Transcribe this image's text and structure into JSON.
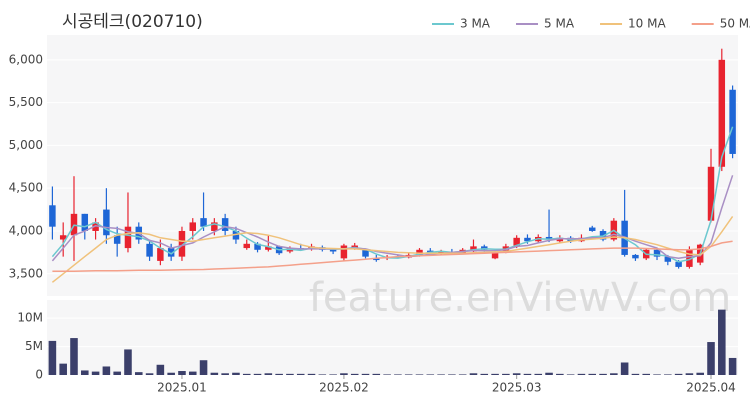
{
  "chart_data": [
    {
      "type": "candlestick",
      "title": "시공테크(020710)",
      "watermark": "feature.enViewV.com",
      "up_color": "#e8232f",
      "down_color": "#1e66d6",
      "open": [
        4300,
        3900,
        3950,
        4200,
        4000,
        4250,
        3950,
        3800,
        4050,
        3850,
        3650,
        3800,
        3700,
        4000,
        4150,
        4000,
        4150,
        4000,
        3800,
        3850,
        3780,
        3820,
        3760,
        3800,
        3790,
        3810,
        3780,
        3680,
        3800,
        3780,
        3680,
        3680,
        3700,
        3690,
        3720,
        3770,
        3740,
        3760,
        3740,
        3760,
        3820,
        3680,
        3760,
        3830,
        3920,
        3880,
        3930,
        3880,
        3920,
        3880,
        4040,
        4000,
        3900,
        4120,
        3720,
        3680,
        3780,
        3700,
        3640,
        3580,
        3630,
        4120,
        4750,
        5650
      ],
      "high": [
        4520,
        4100,
        4640,
        4200,
        4150,
        4500,
        4050,
        4450,
        4100,
        3900,
        3900,
        3850,
        4050,
        4150,
        4450,
        4150,
        4200,
        4050,
        3900,
        3870,
        3950,
        3830,
        3820,
        3850,
        3850,
        3830,
        3800,
        3850,
        3860,
        3790,
        3720,
        3720,
        3720,
        3750,
        3800,
        3800,
        3780,
        3790,
        3800,
        3900,
        3840,
        3780,
        3850,
        3950,
        3960,
        3960,
        4250,
        3950,
        3940,
        3960,
        4060,
        4020,
        4150,
        4480,
        3730,
        3800,
        3800,
        3720,
        3660,
        3820,
        3850,
        4960,
        6130,
        5700
      ],
      "low": [
        3900,
        3700,
        3650,
        3900,
        3900,
        3850,
        3700,
        3750,
        3850,
        3650,
        3600,
        3650,
        3650,
        3900,
        4000,
        3950,
        3950,
        3850,
        3780,
        3750,
        3760,
        3720,
        3740,
        3770,
        3770,
        3760,
        3730,
        3650,
        3780,
        3680,
        3640,
        3660,
        3680,
        3680,
        3700,
        3740,
        3720,
        3720,
        3730,
        3740,
        3760,
        3670,
        3740,
        3800,
        3850,
        3860,
        3870,
        3860,
        3860,
        3870,
        3990,
        3880,
        3880,
        3700,
        3650,
        3660,
        3660,
        3600,
        3560,
        3560,
        3600,
        4100,
        4700,
        4850
      ],
      "close": [
        4050,
        3950,
        4200,
        4000,
        4100,
        3950,
        3850,
        4050,
        3900,
        3700,
        3800,
        3700,
        4000,
        4100,
        4050,
        4100,
        4000,
        3900,
        3850,
        3780,
        3820,
        3740,
        3800,
        3780,
        3820,
        3780,
        3760,
        3830,
        3830,
        3700,
        3660,
        3700,
        3690,
        3720,
        3780,
        3750,
        3760,
        3740,
        3780,
        3820,
        3780,
        3760,
        3820,
        3920,
        3880,
        3930,
        3900,
        3920,
        3880,
        3920,
        4000,
        3900,
        4120,
        3720,
        3680,
        3780,
        3700,
        3640,
        3580,
        3780,
        3840,
        4750,
        6000,
        4900
      ],
      "xlim": [
        -0.5,
        63.5
      ],
      "ylim": [
        3240,
        6290
      ],
      "yticks": [
        {
          "value": 3500,
          "label": "3,500"
        },
        {
          "value": 4000,
          "label": "4,000"
        },
        {
          "value": 4500,
          "label": "4,500"
        },
        {
          "value": 5000,
          "label": "5,000"
        },
        {
          "value": 5500,
          "label": "5,500"
        },
        {
          "value": 6000,
          "label": "6,000"
        }
      ],
      "series": [
        {
          "name": "3 MA",
          "color": "#6cc8cf",
          "values": [
            3700,
            3850,
            4067,
            4050,
            4100,
            4017,
            3967,
            3950,
            3933,
            3883,
            3800,
            3733,
            3833,
            3933,
            4050,
            4083,
            4050,
            4000,
            3917,
            3843,
            3817,
            3780,
            3787,
            3773,
            3800,
            3793,
            3787,
            3790,
            3807,
            3787,
            3730,
            3687,
            3683,
            3703,
            3730,
            3750,
            3763,
            3750,
            3760,
            3780,
            3793,
            3787,
            3787,
            3833,
            3873,
            3910,
            3903,
            3917,
            3900,
            3907,
            3933,
            3940,
            4007,
            3913,
            3840,
            3727,
            3720,
            3707,
            3640,
            3667,
            3733,
            4123,
            4863,
            5217
          ]
        },
        {
          "name": "5 MA",
          "color": "#a98fc4",
          "values": [
            3650,
            3800,
            3950,
            4000,
            4060,
            4040,
            4030,
            3990,
            3970,
            3890,
            3860,
            3800,
            3830,
            3860,
            3930,
            3990,
            4050,
            4030,
            3980,
            3930,
            3870,
            3820,
            3800,
            3790,
            3790,
            3790,
            3790,
            3790,
            3800,
            3790,
            3760,
            3740,
            3720,
            3700,
            3710,
            3730,
            3740,
            3750,
            3760,
            3770,
            3770,
            3770,
            3780,
            3820,
            3830,
            3860,
            3890,
            3910,
            3910,
            3910,
            3920,
            3920,
            3960,
            3930,
            3880,
            3840,
            3800,
            3700,
            3680,
            3700,
            3710,
            3860,
            4270,
            4650
          ]
        },
        {
          "name": "10 MA",
          "color": "#f0c27b",
          "values": [
            3400,
            3500,
            3600,
            3700,
            3800,
            3900,
            3950,
            3970,
            3980,
            3960,
            3920,
            3900,
            3880,
            3880,
            3900,
            3920,
            3940,
            3960,
            3980,
            3970,
            3950,
            3920,
            3880,
            3840,
            3810,
            3800,
            3795,
            3790,
            3790,
            3780,
            3770,
            3760,
            3750,
            3745,
            3740,
            3740,
            3740,
            3740,
            3740,
            3745,
            3750,
            3755,
            3760,
            3780,
            3800,
            3820,
            3840,
            3860,
            3880,
            3895,
            3905,
            3915,
            3930,
            3920,
            3900,
            3870,
            3840,
            3800,
            3760,
            3730,
            3720,
            3820,
            3990,
            4170
          ]
        },
        {
          "name": "50 MA",
          "color": "#f4a08a",
          "values": [
            3530,
            3530,
            3530,
            3532,
            3534,
            3535,
            3536,
            3538,
            3540,
            3540,
            3542,
            3544,
            3546,
            3548,
            3550,
            3555,
            3560,
            3565,
            3570,
            3575,
            3580,
            3590,
            3600,
            3610,
            3620,
            3630,
            3640,
            3650,
            3660,
            3670,
            3680,
            3690,
            3700,
            3705,
            3710,
            3715,
            3720,
            3725,
            3730,
            3735,
            3740,
            3745,
            3750,
            3755,
            3760,
            3765,
            3770,
            3775,
            3780,
            3785,
            3790,
            3795,
            3800,
            3800,
            3800,
            3795,
            3790,
            3785,
            3780,
            3780,
            3790,
            3820,
            3860,
            3880
          ]
        }
      ]
    },
    {
      "type": "bar",
      "color": "#3b3f6a",
      "values": [
        6000000,
        2000000,
        6500000,
        800000,
        600000,
        1500000,
        600000,
        4500000,
        500000,
        300000,
        1800000,
        400000,
        700000,
        600000,
        2600000,
        400000,
        300000,
        400000,
        200000,
        200000,
        300000,
        200000,
        200000,
        200000,
        200000,
        100000,
        100000,
        300000,
        200000,
        200000,
        200000,
        100000,
        100000,
        100000,
        100000,
        100000,
        100000,
        100000,
        100000,
        300000,
        200000,
        200000,
        200000,
        300000,
        200000,
        200000,
        400000,
        200000,
        100000,
        200000,
        200000,
        200000,
        300000,
        2200000,
        200000,
        200000,
        100000,
        100000,
        200000,
        300000,
        400000,
        5800000,
        11500000,
        3000000
      ],
      "xlim": [
        -0.5,
        63.5
      ],
      "ylim": [
        0,
        13200000
      ],
      "yticks": [
        0,
        {
          "value": 5000000,
          "label": "5M"
        },
        {
          "value": 10000000,
          "label": "10M"
        }
      ],
      "xticks": [
        {
          "value": 12,
          "label": "2025.01"
        },
        {
          "value": 27,
          "label": "2025.02"
        },
        {
          "value": 43,
          "label": "2025.03"
        },
        {
          "value": 61,
          "label": "2025.04"
        }
      ]
    }
  ]
}
